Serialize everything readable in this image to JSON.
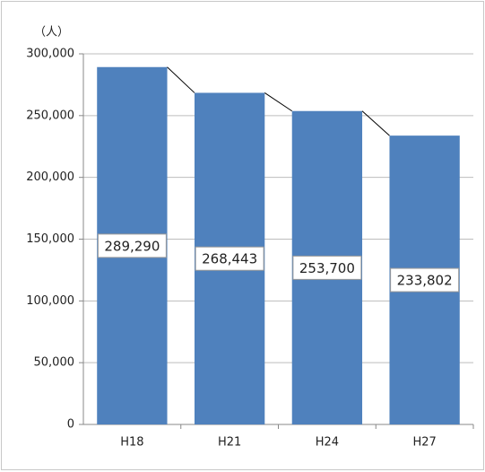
{
  "chart_data": {
    "type": "bar",
    "unit_label": "（人）",
    "categories": [
      "H18",
      "H21",
      "H24",
      "H27"
    ],
    "values": [
      289290,
      268443,
      253700,
      233802
    ],
    "value_labels": [
      "289,290",
      "268,443",
      "253,700",
      "233,802"
    ],
    "color": "#4f81bd",
    "ylim": [
      0,
      300000
    ],
    "yticks": [
      0,
      {
        "value": 50000,
        "label": "50,000"
      },
      {
        "value": 100000,
        "label": "100,000"
      },
      {
        "value": 150000,
        "label": "150,000"
      },
      {
        "value": 200000,
        "label": "200,000"
      },
      {
        "value": 250000,
        "label": "250,000"
      },
      {
        "value": 300000,
        "label": "300,000"
      }
    ],
    "grid": true,
    "series_lines": true
  }
}
